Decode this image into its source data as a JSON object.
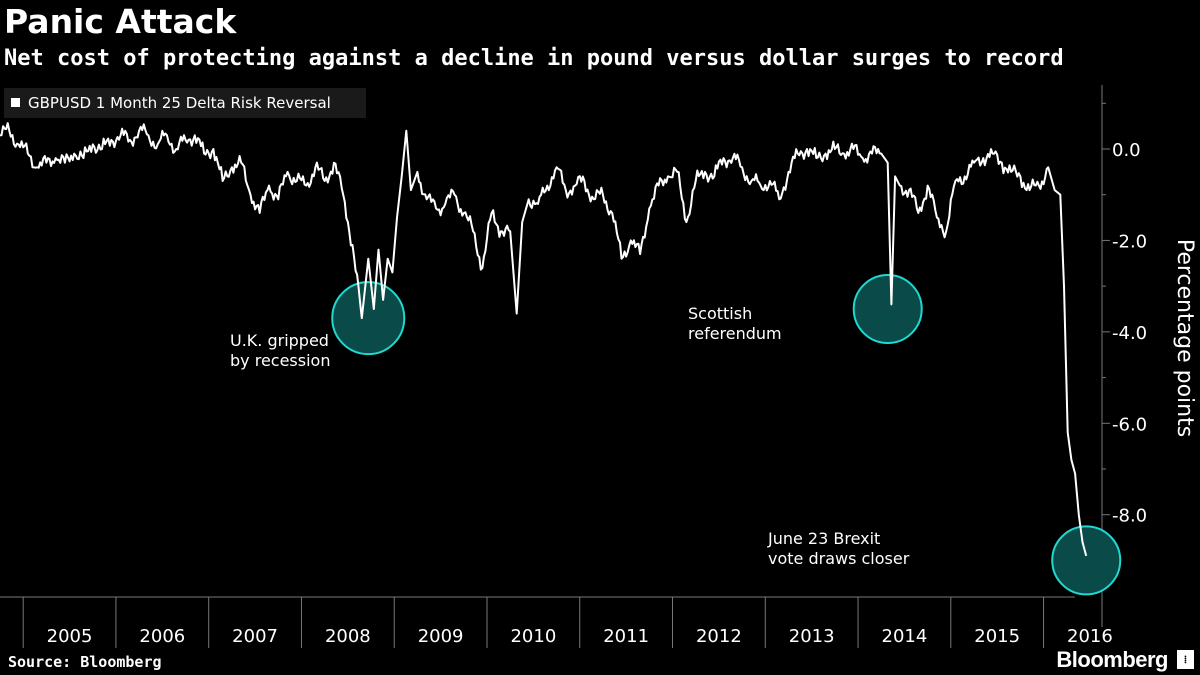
{
  "title": "Panic Attack",
  "subtitle": "Net cost of protecting against a decline in pound versus dollar surges to record",
  "source": "Source: Bloomberg",
  "brand": "Bloomberg",
  "colors": {
    "background": "#000000",
    "line": "#ffffff",
    "highlight": "#1fd8d0",
    "axis": "#777777"
  },
  "chart_data": {
    "type": "line",
    "title": "Panic Attack",
    "subtitle": "Net cost of protecting against a decline in pound versus dollar surges to record",
    "xlabel": "",
    "ylabel": "Percentage points",
    "xlim": [
      2004.75,
      2016.63
    ],
    "ylim": [
      -9.8,
      1.4
    ],
    "yticks": [
      0,
      -2,
      -4,
      -6,
      -8
    ],
    "ytick_labels": [
      "0.0",
      "-2.0",
      "-4.0",
      "-6.0",
      "-8.0"
    ],
    "xtick_labels": [
      "2005",
      "2006",
      "2007",
      "2008",
      "2009",
      "2010",
      "2011",
      "2012",
      "2013",
      "2014",
      "2015",
      "2016"
    ],
    "legend": {
      "position": "top-left",
      "entries": [
        "GBPUSD 1 Month 25 Delta Risk Reversal"
      ]
    },
    "series": [
      {
        "name": "GBPUSD 1 Month 25 Delta Risk Reversal",
        "x": [
          2004.75,
          2004.85,
          2004.95,
          2005.05,
          2005.15,
          2005.25,
          2005.35,
          2005.45,
          2005.55,
          2005.65,
          2005.75,
          2005.85,
          2005.95,
          2006.05,
          2006.15,
          2006.25,
          2006.35,
          2006.45,
          2006.55,
          2006.65,
          2006.75,
          2006.85,
          2006.95,
          2007.05,
          2007.15,
          2007.25,
          2007.35,
          2007.45,
          2007.55,
          2007.65,
          2007.75,
          2007.85,
          2007.95,
          2008.05,
          2008.15,
          2008.25,
          2008.35,
          2008.45,
          2008.55,
          2008.65,
          2008.72,
          2008.78,
          2008.83,
          2008.88,
          2008.93,
          2008.98,
          2009.03,
          2009.08,
          2009.13,
          2009.18,
          2009.25,
          2009.35,
          2009.45,
          2009.55,
          2009.65,
          2009.75,
          2009.85,
          2009.95,
          2010.05,
          2010.15,
          2010.25,
          2010.32,
          2010.38,
          2010.45,
          2010.55,
          2010.65,
          2010.75,
          2010.85,
          2010.95,
          2011.05,
          2011.15,
          2011.25,
          2011.35,
          2011.45,
          2011.55,
          2011.65,
          2011.75,
          2011.85,
          2011.95,
          2012.05,
          2012.15,
          2012.25,
          2012.35,
          2012.45,
          2012.55,
          2012.65,
          2012.75,
          2012.85,
          2012.95,
          2013.05,
          2013.15,
          2013.25,
          2013.35,
          2013.45,
          2013.55,
          2013.65,
          2013.75,
          2013.85,
          2013.95,
          2014.05,
          2014.15,
          2014.25,
          2014.32,
          2014.36,
          2014.4,
          2014.45,
          2014.55,
          2014.65,
          2014.75,
          2014.85,
          2014.95,
          2015.05,
          2015.15,
          2015.25,
          2015.35,
          2015.45,
          2015.55,
          2015.65,
          2015.75,
          2015.85,
          2015.95,
          2016.05,
          2016.12,
          2016.18,
          2016.22,
          2016.26,
          2016.3,
          2016.34,
          2016.38,
          2016.42,
          2016.46
        ],
        "y": [
          0.3,
          0.4,
          0.1,
          -0.1,
          -0.4,
          -0.3,
          -0.2,
          -0.3,
          -0.1,
          -0.2,
          0.1,
          0.0,
          0.2,
          0.3,
          0.2,
          0.4,
          0.3,
          0.1,
          0.3,
          0.0,
          0.2,
          0.3,
          -0.1,
          0.0,
          -0.7,
          -0.4,
          -0.3,
          -1.0,
          -1.4,
          -0.8,
          -1.1,
          -0.5,
          -0.7,
          -0.8,
          -0.4,
          -0.7,
          -0.3,
          -1.0,
          -2.1,
          -3.7,
          -2.4,
          -3.5,
          -2.2,
          -3.3,
          -2.4,
          -2.7,
          -1.5,
          -0.6,
          0.4,
          -0.9,
          -0.5,
          -1.1,
          -1.3,
          -1.2,
          -1.0,
          -1.4,
          -1.8,
          -2.6,
          -1.4,
          -1.8,
          -1.8,
          -3.6,
          -1.6,
          -1.1,
          -1.2,
          -0.8,
          -0.4,
          -0.9,
          -0.8,
          -0.7,
          -1.1,
          -1.0,
          -1.4,
          -2.4,
          -2.0,
          -2.3,
          -1.3,
          -0.8,
          -0.6,
          -0.5,
          -1.6,
          -0.7,
          -0.5,
          -0.6,
          -0.2,
          -0.2,
          -0.4,
          -0.7,
          -0.8,
          -0.7,
          -1.1,
          -0.5,
          -0.1,
          0.0,
          -0.2,
          -0.1,
          0.0,
          -0.1,
          0.0,
          -0.2,
          -0.1,
          -0.1,
          -0.3,
          -3.4,
          -0.6,
          -0.8,
          -0.9,
          -1.4,
          -0.8,
          -1.5,
          -1.8,
          -0.7,
          -0.6,
          -0.3,
          -0.2,
          -0.1,
          -0.3,
          -0.5,
          -0.6,
          -0.9,
          -0.8,
          -0.4,
          -0.9,
          -1.0,
          -3.0,
          -6.2,
          -6.8,
          -7.1,
          -8.0,
          -8.6,
          -8.9
        ]
      }
    ],
    "annotations": [
      {
        "text_lines": [
          "U.K. gripped",
          "by recession"
        ],
        "x": 2008.72,
        "y": -3.7
      },
      {
        "text_lines": [
          "Scottish",
          "referendum"
        ],
        "x": 2014.32,
        "y": -3.5
      },
      {
        "text_lines": [
          "June 23 Brexit",
          "vote draws closer"
        ],
        "x": 2016.46,
        "y": -9.0
      }
    ]
  }
}
